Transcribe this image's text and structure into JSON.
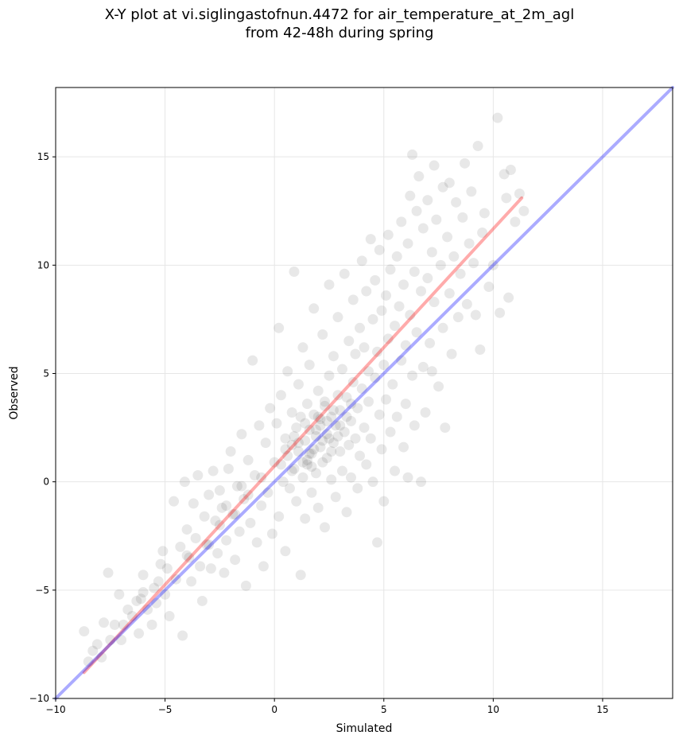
{
  "title_line1": "X-Y plot at vi.siglingastofnun.4472 for air_temperature_at_2m_agl",
  "title_line2": "from 42-48h during spring",
  "colors": {
    "points": "#000000",
    "fit_line": "#ff0000",
    "identity_line": "#0000ff",
    "grid": "#e6e6e6"
  },
  "chart_data": {
    "type": "scatter",
    "title": "X-Y plot at vi.siglingastofnun.4472 for air_temperature_at_2m_agl from 42-48h during spring",
    "xlabel": "Simulated",
    "ylabel": "Observed",
    "xlim": [
      -10,
      18.2
    ],
    "ylim": [
      -10,
      18.2
    ],
    "xticks": [
      -10,
      -5,
      0,
      5,
      10,
      15
    ],
    "yticks": [
      -10,
      -5,
      0,
      5,
      10,
      15
    ],
    "xtick_labels": [
      "−10",
      "−5",
      "0",
      "5",
      "10",
      "15"
    ],
    "ytick_labels": [
      "−10",
      "−5",
      "0",
      "5",
      "10",
      "15"
    ],
    "grid": true,
    "lines": [
      {
        "role": "fit",
        "color": "red",
        "points": [
          [
            -8.7,
            -8.8
          ],
          [
            11.3,
            13.1
          ]
        ]
      },
      {
        "role": "identity",
        "color": "blue",
        "points": [
          [
            -10,
            -10
          ],
          [
            18.2,
            18.2
          ]
        ]
      }
    ],
    "points": [
      [
        -8.7,
        -6.9
      ],
      [
        -8.5,
        -8.3
      ],
      [
        -8.3,
        -7.8
      ],
      [
        -8.1,
        -7.5
      ],
      [
        -7.9,
        -8.1
      ],
      [
        -7.8,
        -6.5
      ],
      [
        -7.6,
        -4.2
      ],
      [
        -7.5,
        -7.3
      ],
      [
        -7.3,
        -6.6
      ],
      [
        -7.1,
        -5.2
      ],
      [
        -7.0,
        -7.3
      ],
      [
        -6.9,
        -6.6
      ],
      [
        -6.7,
        -5.9
      ],
      [
        -6.5,
        -6.2
      ],
      [
        -6.3,
        -5.5
      ],
      [
        -6.2,
        -7.0
      ],
      [
        -6.0,
        -4.3
      ],
      [
        -6.0,
        -5.1
      ],
      [
        -5.8,
        -5.9
      ],
      [
        -5.6,
        -6.6
      ],
      [
        -5.5,
        -4.9
      ],
      [
        -5.4,
        -5.6
      ],
      [
        -5.2,
        -3.8
      ],
      [
        -5.1,
        -3.2
      ],
      [
        -5.0,
        -5.2
      ],
      [
        -4.9,
        -4.0
      ],
      [
        -4.8,
        -6.2
      ],
      [
        -4.6,
        -0.9
      ],
      [
        -4.5,
        -4.5
      ],
      [
        -4.3,
        -3.0
      ],
      [
        -4.2,
        -7.1
      ],
      [
        -4.1,
        0.0
      ],
      [
        -4.0,
        -2.2
      ],
      [
        -3.9,
        -3.5
      ],
      [
        -3.8,
        -4.6
      ],
      [
        -3.7,
        -1.0
      ],
      [
        -3.6,
        -2.6
      ],
      [
        -3.5,
        0.3
      ],
      [
        -3.4,
        -3.9
      ],
      [
        -3.3,
        -5.5
      ],
      [
        -3.2,
        -1.6
      ],
      [
        -3.1,
        -2.9
      ],
      [
        -3.0,
        -0.6
      ],
      [
        -2.9,
        -4.0
      ],
      [
        -2.8,
        0.5
      ],
      [
        -2.7,
        -1.8
      ],
      [
        -2.6,
        -3.3
      ],
      [
        -2.5,
        -0.4
      ],
      [
        -2.4,
        -1.2
      ],
      [
        -2.3,
        -4.2
      ],
      [
        -2.2,
        -2.7
      ],
      [
        -2.1,
        0.6
      ],
      [
        -2.0,
        1.4
      ],
      [
        -1.9,
        -1.5
      ],
      [
        -1.8,
        -3.6
      ],
      [
        -1.7,
        -0.2
      ],
      [
        -1.6,
        -2.3
      ],
      [
        -1.5,
        2.2
      ],
      [
        -1.4,
        -0.8
      ],
      [
        -1.3,
        -4.8
      ],
      [
        -1.2,
        1.0
      ],
      [
        -1.1,
        -1.9
      ],
      [
        -1.0,
        5.6
      ],
      [
        -0.9,
        0.3
      ],
      [
        -0.8,
        -2.8
      ],
      [
        -0.7,
        2.6
      ],
      [
        -0.6,
        -1.1
      ],
      [
        -0.5,
        -3.9
      ],
      [
        -0.4,
        1.8
      ],
      [
        -0.3,
        -0.5
      ],
      [
        -0.2,
        3.4
      ],
      [
        -0.1,
        -2.4
      ],
      [
        0.0,
        0.9
      ],
      [
        0.1,
        2.7
      ],
      [
        0.2,
        -1.6
      ],
      [
        0.2,
        7.1
      ],
      [
        0.3,
        4.0
      ],
      [
        0.4,
        0.0
      ],
      [
        0.5,
        2.0
      ],
      [
        0.5,
        -3.2
      ],
      [
        0.6,
        1.2
      ],
      [
        0.6,
        5.1
      ],
      [
        0.7,
        -0.3
      ],
      [
        0.8,
        3.2
      ],
      [
        0.8,
        1.7
      ],
      [
        0.9,
        9.7
      ],
      [
        0.9,
        0.6
      ],
      [
        1.0,
        2.5
      ],
      [
        1.0,
        -0.9
      ],
      [
        1.1,
        4.5
      ],
      [
        1.1,
        1.4
      ],
      [
        1.2,
        -4.3
      ],
      [
        1.2,
        3.0
      ],
      [
        1.3,
        0.2
      ],
      [
        1.3,
        6.2
      ],
      [
        1.4,
        1.9
      ],
      [
        1.4,
        -1.7
      ],
      [
        1.5,
        3.6
      ],
      [
        1.5,
        0.8
      ],
      [
        1.6,
        2.4
      ],
      [
        1.6,
        5.4
      ],
      [
        1.7,
        -0.5
      ],
      [
        1.7,
        1.3
      ],
      [
        1.8,
        3.1
      ],
      [
        1.8,
        8.0
      ],
      [
        1.9,
        0.4
      ],
      [
        1.9,
        2.1
      ],
      [
        2.0,
        4.2
      ],
      [
        2.0,
        -1.2
      ],
      [
        2.1,
        1.6
      ],
      [
        2.1,
        2.9
      ],
      [
        2.2,
        6.8
      ],
      [
        2.2,
        0.9
      ],
      [
        2.3,
        3.5
      ],
      [
        2.3,
        -2.1
      ],
      [
        2.4,
        2.2
      ],
      [
        2.4,
        1.1
      ],
      [
        2.5,
        4.9
      ],
      [
        2.5,
        9.1
      ],
      [
        2.6,
        0.1
      ],
      [
        2.6,
        3.0
      ],
      [
        2.7,
        1.8
      ],
      [
        2.7,
        5.8
      ],
      [
        2.8,
        -0.7
      ],
      [
        2.8,
        2.6
      ],
      [
        2.9,
        4.0
      ],
      [
        2.9,
        7.6
      ],
      [
        3.0,
        1.4
      ],
      [
        3.0,
        3.3
      ],
      [
        3.1,
        0.5
      ],
      [
        3.1,
        5.2
      ],
      [
        3.2,
        2.3
      ],
      [
        3.2,
        9.6
      ],
      [
        3.3,
        -1.4
      ],
      [
        3.3,
        3.9
      ],
      [
        3.4,
        1.7
      ],
      [
        3.4,
        6.5
      ],
      [
        3.5,
        2.8
      ],
      [
        3.5,
        0.2
      ],
      [
        3.6,
        4.6
      ],
      [
        3.6,
        8.4
      ],
      [
        3.7,
        2.0
      ],
      [
        3.7,
        5.9
      ],
      [
        3.8,
        -0.3
      ],
      [
        3.8,
        3.4
      ],
      [
        3.9,
        7.1
      ],
      [
        3.9,
        1.2
      ],
      [
        4.0,
        4.3
      ],
      [
        4.0,
        10.2
      ],
      [
        4.1,
        2.5
      ],
      [
        4.1,
        6.2
      ],
      [
        4.2,
        0.8
      ],
      [
        4.2,
        8.8
      ],
      [
        4.3,
        3.7
      ],
      [
        4.3,
        5.1
      ],
      [
        4.4,
        11.2
      ],
      [
        4.4,
        2.0
      ],
      [
        4.5,
        7.5
      ],
      [
        4.5,
        0.0
      ],
      [
        4.6,
        4.8
      ],
      [
        4.6,
        9.3
      ],
      [
        4.7,
        -2.8
      ],
      [
        4.7,
        6.0
      ],
      [
        4.8,
        3.1
      ],
      [
        4.8,
        10.7
      ],
      [
        4.9,
        7.9
      ],
      [
        4.9,
        1.5
      ],
      [
        5.0,
        5.4
      ],
      [
        5.0,
        -0.9
      ],
      [
        5.1,
        8.6
      ],
      [
        5.1,
        3.8
      ],
      [
        5.2,
        11.4
      ],
      [
        5.2,
        6.6
      ],
      [
        5.3,
        2.3
      ],
      [
        5.3,
        9.8
      ],
      [
        5.4,
        4.5
      ],
      [
        5.5,
        7.2
      ],
      [
        5.5,
        0.5
      ],
      [
        5.6,
        10.4
      ],
      [
        5.6,
        3.0
      ],
      [
        5.7,
        8.1
      ],
      [
        5.8,
        5.6
      ],
      [
        5.8,
        12.0
      ],
      [
        5.9,
        1.6
      ],
      [
        5.9,
        9.1
      ],
      [
        6.0,
        6.3
      ],
      [
        6.0,
        3.6
      ],
      [
        6.1,
        11.0
      ],
      [
        6.1,
        0.2
      ],
      [
        6.2,
        7.7
      ],
      [
        6.2,
        13.2
      ],
      [
        6.3,
        4.9
      ],
      [
        6.3,
        15.1
      ],
      [
        6.4,
        9.7
      ],
      [
        6.4,
        2.6
      ],
      [
        6.5,
        12.5
      ],
      [
        6.5,
        6.9
      ],
      [
        6.6,
        14.1
      ],
      [
        6.7,
        0.0
      ],
      [
        6.7,
        8.8
      ],
      [
        6.8,
        5.3
      ],
      [
        6.8,
        11.7
      ],
      [
        6.9,
        3.2
      ],
      [
        7.0,
        9.4
      ],
      [
        7.0,
        13.0
      ],
      [
        7.1,
        6.4
      ],
      [
        7.2,
        10.6
      ],
      [
        7.2,
        5.1
      ],
      [
        7.3,
        14.6
      ],
      [
        7.3,
        8.3
      ],
      [
        7.4,
        12.1
      ],
      [
        7.5,
        4.4
      ],
      [
        7.6,
        10.0
      ],
      [
        7.7,
        13.6
      ],
      [
        7.7,
        7.1
      ],
      [
        7.8,
        2.5
      ],
      [
        7.9,
        11.3
      ],
      [
        8.0,
        8.7
      ],
      [
        8.0,
        13.8
      ],
      [
        8.1,
        5.9
      ],
      [
        8.2,
        10.4
      ],
      [
        8.3,
        12.9
      ],
      [
        8.4,
        7.6
      ],
      [
        8.5,
        9.6
      ],
      [
        8.6,
        12.2
      ],
      [
        8.7,
        14.7
      ],
      [
        8.8,
        8.2
      ],
      [
        8.9,
        11.0
      ],
      [
        9.0,
        13.4
      ],
      [
        9.1,
        10.1
      ],
      [
        9.2,
        7.7
      ],
      [
        9.3,
        15.5
      ],
      [
        9.4,
        6.1
      ],
      [
        9.5,
        11.5
      ],
      [
        9.6,
        12.4
      ],
      [
        9.8,
        9.0
      ],
      [
        10.0,
        10.0
      ],
      [
        10.2,
        16.8
      ],
      [
        10.3,
        7.8
      ],
      [
        10.5,
        14.2
      ],
      [
        10.6,
        13.1
      ],
      [
        10.7,
        8.5
      ],
      [
        10.8,
        14.4
      ],
      [
        11.0,
        12.0
      ],
      [
        11.2,
        13.3
      ],
      [
        11.4,
        12.5
      ],
      [
        1.5,
        1.0
      ],
      [
        1.8,
        1.5
      ],
      [
        2.1,
        2.6
      ],
      [
        2.4,
        2.8
      ],
      [
        2.0,
        3.0
      ],
      [
        1.3,
        0.9
      ],
      [
        2.7,
        3.3
      ],
      [
        1.1,
        1.8
      ],
      [
        2.5,
        2.0
      ],
      [
        1.9,
        2.4
      ],
      [
        0.8,
        0.5
      ],
      [
        3.0,
        2.6
      ],
      [
        1.6,
        1.3
      ],
      [
        2.3,
        3.7
      ],
      [
        0.5,
        1.5
      ],
      [
        2.9,
        2.1
      ],
      [
        1.4,
        2.7
      ],
      [
        2.6,
        1.4
      ],
      [
        0.9,
        2.1
      ],
      [
        3.3,
        3.0
      ],
      [
        1.7,
        0.7
      ],
      [
        2.2,
        1.9
      ],
      [
        0.3,
        0.8
      ],
      [
        3.5,
        3.6
      ],
      [
        -3.0,
        -2.9
      ],
      [
        -2.5,
        -2.0
      ],
      [
        -1.8,
        -1.5
      ],
      [
        -1.2,
        -0.6
      ],
      [
        -0.6,
        0.2
      ],
      [
        -4.0,
        -3.4
      ],
      [
        -5.3,
        -4.6
      ],
      [
        -6.1,
        -5.4
      ],
      [
        -2.2,
        -1.1
      ],
      [
        -1.5,
        -0.2
      ]
    ]
  }
}
